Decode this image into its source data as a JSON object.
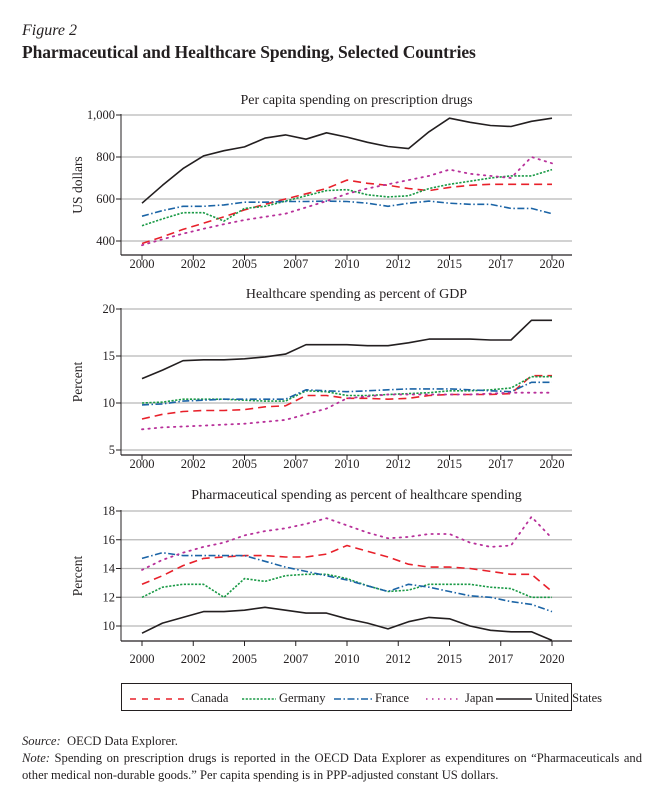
{
  "figure": {
    "label": "Figure 2",
    "title": "Pharmaceutical and Healthcare Spending, Selected Countries"
  },
  "legend": [
    {
      "key": "canada",
      "label": "Canada"
    },
    {
      "key": "germany",
      "label": "Germany"
    },
    {
      "key": "france",
      "label": "France"
    },
    {
      "key": "japan",
      "label": "Japan"
    },
    {
      "key": "us",
      "label": "United States"
    }
  ],
  "series_styles": {
    "canada": {
      "color": "#e8202a",
      "dash": "dashed"
    },
    "germany": {
      "color": "#1a9a46",
      "dash": "dotted-short"
    },
    "france": {
      "color": "#1b64a6",
      "dash": "dash-dot"
    },
    "japan": {
      "color": "#b8309a",
      "dash": "dotted"
    },
    "us": {
      "color": "#231f20",
      "dash": "solid"
    }
  },
  "notes": {
    "source_label": "Source:",
    "source_text": "OECD Data Explorer.",
    "note_label": "Note:",
    "note_text": "Spending on prescription drugs is reported in the OECD Data Explorer as expenditures on “Pharmaceuticals and other medical non-durable goods.” Per capita spending is in PPP-adjusted constant US dollars."
  },
  "chart_data": [
    {
      "type": "line",
      "title": "Per capita spending on prescription drugs",
      "xlabel": "",
      "ylabel": "US dollars",
      "x": [
        2000,
        2001,
        2002,
        2003,
        2004,
        2005,
        2006,
        2007,
        2008,
        2009,
        2010,
        2011,
        2012,
        2013,
        2014,
        2015,
        2016,
        2017,
        2018,
        2019,
        2020
      ],
      "x_tick_labels": [
        "2000",
        "2002",
        "2005",
        "2007",
        "2010",
        "2012",
        "2015",
        "2017",
        "2020"
      ],
      "y_ticks": [
        400,
        600,
        800,
        1000
      ],
      "y_tick_labels": [
        "400",
        "600",
        "800",
        "1,000"
      ],
      "ylim": [
        370,
        1000
      ],
      "grid": "horizontal",
      "series": [
        {
          "name": "Canada",
          "key": "canada",
          "values": [
            388,
            420,
            455,
            485,
            515,
            548,
            575,
            600,
            625,
            650,
            690,
            675,
            665,
            650,
            640,
            655,
            665,
            670,
            670,
            670,
            670
          ]
        },
        {
          "name": "Germany",
          "key": "germany",
          "values": [
            473,
            505,
            535,
            535,
            495,
            555,
            565,
            590,
            615,
            640,
            645,
            620,
            610,
            615,
            650,
            670,
            685,
            700,
            710,
            710,
            740
          ]
        },
        {
          "name": "France",
          "key": "france",
          "values": [
            518,
            545,
            565,
            565,
            572,
            585,
            585,
            588,
            588,
            590,
            588,
            580,
            565,
            580,
            590,
            580,
            575,
            575,
            555,
            555,
            530
          ]
        },
        {
          "name": "Japan",
          "key": "japan",
          "values": [
            380,
            408,
            435,
            458,
            480,
            500,
            515,
            530,
            560,
            590,
            625,
            650,
            670,
            690,
            710,
            740,
            720,
            710,
            700,
            800,
            770
          ]
        },
        {
          "name": "United States",
          "key": "us",
          "values": [
            580,
            665,
            745,
            805,
            830,
            848,
            890,
            905,
            885,
            915,
            895,
            870,
            850,
            840,
            920,
            985,
            965,
            950,
            945,
            970,
            985
          ]
        }
      ]
    },
    {
      "type": "line",
      "title": "Healthcare spending as percent of GDP",
      "xlabel": "",
      "ylabel": "Percent",
      "x": [
        2000,
        2001,
        2002,
        2003,
        2004,
        2005,
        2006,
        2007,
        2008,
        2009,
        2010,
        2011,
        2012,
        2013,
        2014,
        2015,
        2016,
        2017,
        2018,
        2019,
        2020
      ],
      "x_tick_labels": [
        "2000",
        "2002",
        "2005",
        "2007",
        "2010",
        "2012",
        "2015",
        "2017",
        "2020"
      ],
      "y_ticks": [
        5,
        10,
        15,
        20
      ],
      "y_tick_labels": [
        "5",
        "10",
        "15",
        "20"
      ],
      "ylim": [
        5,
        20
      ],
      "grid": "horizontal",
      "series": [
        {
          "name": "Canada",
          "key": "canada",
          "values": [
            8.3,
            8.8,
            9.1,
            9.2,
            9.2,
            9.3,
            9.6,
            9.7,
            10.8,
            10.8,
            10.5,
            10.5,
            10.4,
            10.5,
            10.8,
            10.9,
            10.9,
            10.9,
            11.0,
            12.9,
            12.9
          ]
        },
        {
          "name": "Germany",
          "key": "germany",
          "values": [
            10.0,
            10.1,
            10.4,
            10.4,
            10.4,
            10.3,
            10.2,
            10.2,
            11.3,
            11.2,
            10.8,
            10.8,
            10.9,
            11.0,
            11.1,
            11.3,
            11.3,
            11.4,
            11.6,
            12.8,
            12.8
          ]
        },
        {
          "name": "France",
          "key": "france",
          "values": [
            9.8,
            9.9,
            10.2,
            10.3,
            10.4,
            10.4,
            10.4,
            10.4,
            11.4,
            11.3,
            11.2,
            11.3,
            11.4,
            11.5,
            11.5,
            11.5,
            11.4,
            11.3,
            11.2,
            12.2,
            12.2
          ]
        },
        {
          "name": "Japan",
          "key": "japan",
          "values": [
            7.2,
            7.4,
            7.5,
            7.6,
            7.7,
            7.8,
            8.0,
            8.2,
            8.8,
            9.4,
            10.5,
            10.7,
            10.9,
            10.9,
            10.9,
            10.9,
            10.9,
            11.0,
            11.1,
            11.1,
            11.1
          ]
        },
        {
          "name": "United States",
          "key": "us",
          "values": [
            12.6,
            13.5,
            14.5,
            14.6,
            14.6,
            14.7,
            14.9,
            15.2,
            16.2,
            16.2,
            16.2,
            16.1,
            16.1,
            16.4,
            16.8,
            16.8,
            16.8,
            16.7,
            16.7,
            18.8,
            18.8
          ]
        }
      ]
    },
    {
      "type": "line",
      "title": "Pharmaceutical spending as percent of healthcare spending",
      "xlabel": "",
      "ylabel": "Percent",
      "x": [
        2000,
        2001,
        2002,
        2003,
        2004,
        2005,
        2006,
        2007,
        2008,
        2009,
        2010,
        2011,
        2012,
        2013,
        2014,
        2015,
        2016,
        2017,
        2018,
        2019,
        2020
      ],
      "x_tick_labels": [
        "2000",
        "2002",
        "2005",
        "2007",
        "2010",
        "2012",
        "2015",
        "2017",
        "2020"
      ],
      "y_ticks": [
        10,
        12,
        14,
        16,
        18
      ],
      "y_tick_labels": [
        "10",
        "12",
        "14",
        "16",
        "18"
      ],
      "ylim": [
        8.5,
        18
      ],
      "grid": "horizontal",
      "series": [
        {
          "name": "Canada",
          "key": "canada",
          "values": [
            12.9,
            13.5,
            14.2,
            14.7,
            14.8,
            14.9,
            14.9,
            14.8,
            14.8,
            15.0,
            15.6,
            15.2,
            14.8,
            14.3,
            14.1,
            14.1,
            14.0,
            13.8,
            13.6,
            13.6,
            12.4
          ]
        },
        {
          "name": "Germany",
          "key": "germany",
          "values": [
            12.0,
            12.7,
            12.9,
            12.9,
            12.0,
            13.3,
            13.1,
            13.5,
            13.6,
            13.6,
            13.3,
            12.8,
            12.4,
            12.5,
            12.9,
            12.9,
            12.9,
            12.7,
            12.6,
            12.0,
            12.0
          ]
        },
        {
          "name": "France",
          "key": "france",
          "values": [
            14.7,
            15.1,
            14.9,
            14.9,
            14.9,
            14.9,
            14.5,
            14.1,
            13.8,
            13.5,
            13.2,
            12.8,
            12.4,
            12.9,
            12.7,
            12.4,
            12.1,
            12.0,
            11.7,
            11.5,
            11.0
          ]
        },
        {
          "name": "Japan",
          "key": "japan",
          "values": [
            13.9,
            14.6,
            15.1,
            15.5,
            15.8,
            16.3,
            16.6,
            16.8,
            17.1,
            17.5,
            17.0,
            16.5,
            16.1,
            16.2,
            16.4,
            16.4,
            15.8,
            15.5,
            15.6,
            17.6,
            16.1
          ]
        },
        {
          "name": "United States",
          "key": "us",
          "values": [
            9.5,
            10.2,
            10.6,
            11.0,
            11.0,
            11.1,
            11.3,
            11.1,
            10.9,
            10.9,
            10.5,
            10.2,
            9.8,
            10.3,
            10.6,
            10.5,
            10.0,
            9.7,
            9.6,
            9.6,
            9.0
          ]
        }
      ]
    }
  ]
}
